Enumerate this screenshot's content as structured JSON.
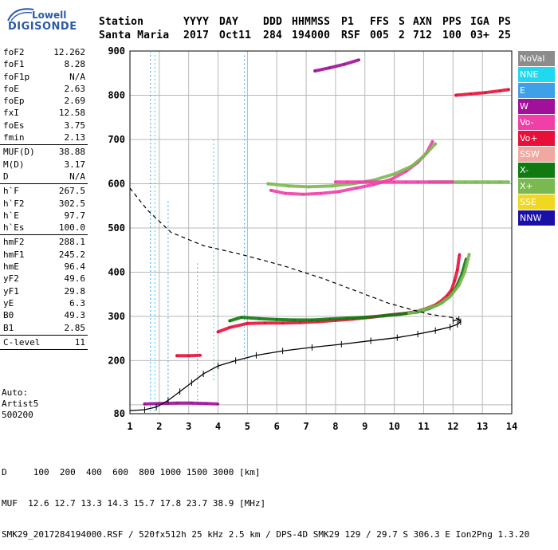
{
  "logo": {
    "word1": "Lowell",
    "word2": "DIGISONDE"
  },
  "header": {
    "labels": [
      "Station",
      "YYYY",
      "DAY",
      "DDD",
      "HHMMSS",
      "P1",
      "FFS",
      "S",
      "AXN",
      "PPS",
      "IGA",
      "PS"
    ],
    "values": [
      "Santa Maria",
      "2017",
      "Oct11",
      "284",
      "194000",
      "RSF",
      "005",
      "2",
      "712",
      "100",
      "03+",
      "25"
    ]
  },
  "params": [
    {
      "label": "foF2",
      "value": "12.262"
    },
    {
      "label": "foF1",
      "value": "8.28"
    },
    {
      "label": "foF1p",
      "value": "N/A"
    },
    {
      "label": "foE",
      "value": "2.63"
    },
    {
      "label": "foEp",
      "value": "2.69"
    },
    {
      "label": "fxI",
      "value": "12.58"
    },
    {
      "label": "foEs",
      "value": "3.75"
    },
    {
      "label": "fmin",
      "value": "2.13"
    },
    {
      "sep": true
    },
    {
      "label": "MUF(D)",
      "value": "38.88"
    },
    {
      "label": "M(D)",
      "value": "3.17"
    },
    {
      "label": "D",
      "value": "N/A"
    },
    {
      "sep": true
    },
    {
      "label": "h`F",
      "value": "267.5"
    },
    {
      "label": "h`F2",
      "value": "302.5"
    },
    {
      "label": "h`E",
      "value": "97.7"
    },
    {
      "label": "h`Es",
      "value": "100.0"
    },
    {
      "sep": true
    },
    {
      "label": "hmF2",
      "value": "288.1"
    },
    {
      "label": "hmF1",
      "value": "245.2"
    },
    {
      "label": "hmE",
      "value": "96.4"
    },
    {
      "label": "yF2",
      "value": "49.6"
    },
    {
      "label": "yF1",
      "value": "29.8"
    },
    {
      "label": "yE",
      "value": "6.3"
    },
    {
      "label": "B0",
      "value": "49.3"
    },
    {
      "label": "B1",
      "value": "2.85"
    },
    {
      "sep": true
    },
    {
      "label": "C-level",
      "value": "11"
    },
    {
      "sep": true
    }
  ],
  "auto": [
    "Auto:",
    "Artist5",
    "500200"
  ],
  "legend": [
    {
      "label": "NoVal",
      "color": "#8c8c8c"
    },
    {
      "label": "NNE",
      "color": "#20d8f0"
    },
    {
      "label": "E",
      "color": "#3ea0e8"
    },
    {
      "label": "W",
      "color": "#a0109a"
    },
    {
      "label": "Vo-",
      "color": "#f040a8"
    },
    {
      "label": "Vo+",
      "color": "#e8103a"
    },
    {
      "label": "SSW",
      "color": "#f0a8a0"
    },
    {
      "label": "X-",
      "color": "#107a10"
    },
    {
      "label": "X+",
      "color": "#7ab850"
    },
    {
      "label": "SSE",
      "color": "#f0d820"
    },
    {
      "label": "NNW",
      "color": "#1a10a8"
    }
  ],
  "footer": {
    "line1": "D     100  200  400  600  800 1000 1500 3000 [km]",
    "line2": "MUF  12.6 12.7 13.3 14.3 15.7 17.8 23.7 38.9 [MHz]",
    "line3": "SMK29_2017284194000.RSF / 520fx512h 25 kHz 2.5 km / DPS-4D SMK29 129 / 29.7 S 306.3 E Ion2Png 1.3.20"
  },
  "chart_data": {
    "type": "scatter",
    "xlim": [
      1,
      14
    ],
    "ylim": [
      80,
      900
    ],
    "x_ticks": [
      1,
      2,
      3,
      4,
      5,
      6,
      7,
      8,
      9,
      10,
      11,
      12,
      13,
      14
    ],
    "y_ticks": [
      100,
      200,
      300,
      400,
      500,
      600,
      700,
      800,
      900
    ],
    "y_tick_labels": [
      "",
      "200",
      "300",
      "400",
      "500",
      "600",
      "700",
      "800",
      "900"
    ],
    "y_extra_label": "80",
    "grid": true,
    "profile_dashed": {
      "x": [
        1.0,
        1.6,
        2.4,
        3.5,
        4.8,
        6.2,
        7.6,
        8.8,
        9.8,
        10.6,
        11.2,
        11.7,
        12.1,
        12.26
      ],
      "y": [
        590,
        540,
        490,
        460,
        440,
        415,
        385,
        355,
        330,
        315,
        305,
        300,
        296,
        292
      ]
    },
    "profile_solid": {
      "x": [
        1.0,
        1.5,
        1.9,
        2.3,
        2.7,
        3.1,
        3.5,
        4.0,
        4.6,
        5.3,
        6.2,
        7.2,
        8.2,
        9.2,
        10.1,
        10.8,
        11.4,
        11.9,
        12.15,
        12.26,
        12.2,
        12.0
      ],
      "y": [
        87,
        89,
        95,
        110,
        130,
        150,
        170,
        188,
        200,
        212,
        222,
        230,
        237,
        245,
        252,
        260,
        268,
        276,
        282,
        288,
        293,
        290
      ]
    },
    "series": [
      {
        "name": "Vo+",
        "x": [
          4.0,
          4.4,
          5.0,
          5.6,
          6.2,
          6.8,
          7.4,
          8.0,
          8.6,
          9.2,
          9.8,
          10.4,
          10.8,
          11.1,
          11.4,
          11.6,
          11.8,
          11.95,
          12.05,
          12.15,
          12.22
        ],
        "y": [
          265,
          275,
          284,
          285,
          285,
          286,
          288,
          291,
          294,
          298,
          303,
          307,
          312,
          318,
          326,
          335,
          347,
          360,
          380,
          405,
          440
        ]
      },
      {
        "name": "X-",
        "x": [
          4.4,
          4.8,
          5.4,
          6.0,
          6.6,
          7.2,
          7.8,
          8.4,
          9.0,
          9.6,
          10.2,
          10.8,
          11.2,
          11.6,
          11.9,
          12.1,
          12.3,
          12.45
        ],
        "y": [
          290,
          298,
          295,
          293,
          292,
          292,
          294,
          296,
          298,
          301,
          305,
          310,
          318,
          330,
          345,
          365,
          395,
          430
        ]
      },
      {
        "name": "X+",
        "x": [
          10.5,
          11.0,
          11.5,
          11.9,
          12.2,
          12.4,
          12.55
        ],
        "y": [
          307,
          315,
          326,
          345,
          370,
          400,
          440
        ]
      },
      {
        "name": "Vo-",
        "x": [
          5.8,
          6.3,
          6.9,
          7.5,
          8.1,
          8.7,
          9.3,
          9.9,
          10.4,
          10.8,
          11.1,
          11.3
        ],
        "y": [
          585,
          578,
          576,
          578,
          582,
          590,
          598,
          610,
          628,
          648,
          670,
          695
        ]
      },
      {
        "name": "W",
        "x": [
          1.5,
          2.0,
          2.6,
          3.1,
          3.6,
          4.0
        ],
        "y": [
          102,
          103,
          104,
          104,
          103,
          102
        ]
      },
      {
        "name": "X+",
        "x": [
          5.7,
          6.4,
          7.1,
          7.9,
          8.6,
          9.3,
          10.0,
          10.6,
          11.0,
          11.4
        ],
        "y": [
          600,
          595,
          593,
          595,
          600,
          608,
          622,
          640,
          662,
          690
        ]
      },
      {
        "name": "W",
        "x": [
          7.3,
          7.8,
          8.3,
          8.8
        ],
        "y": [
          855,
          862,
          870,
          880
        ]
      },
      {
        "name": "Vo+",
        "x": [
          12.1,
          12.6,
          13.1,
          13.6,
          13.9
        ],
        "y": [
          800,
          803,
          806,
          810,
          813
        ]
      },
      {
        "name": "X+",
        "x": [
          11.2,
          11.6,
          12.0,
          12.4,
          12.8,
          13.2,
          13.6,
          13.9
        ],
        "y": [
          604,
          604,
          604,
          604,
          604,
          604,
          604,
          604
        ]
      },
      {
        "name": "Vo+",
        "x": [
          2.6,
          3.0,
          3.4
        ],
        "y": [
          211,
          211,
          212
        ]
      },
      {
        "name": "Vo-",
        "x": [
          8.0,
          8.4,
          8.8,
          9.2,
          9.6,
          10.0,
          10.4,
          10.8,
          11.2,
          11.6,
          12.0
        ],
        "y": [
          604,
          604,
          604,
          604,
          604,
          604,
          604,
          604,
          604,
          604,
          604
        ]
      }
    ],
    "vertical_traces": [
      {
        "x": 1.7,
        "y": [
          80,
          900
        ],
        "color": "#3ea0e8"
      },
      {
        "x": 1.85,
        "y": [
          80,
          900
        ],
        "color": "#20d8f0"
      },
      {
        "x": 2.3,
        "y": [
          100,
          560
        ],
        "color": "#3ea0e8"
      },
      {
        "x": 3.3,
        "y": [
          100,
          420
        ],
        "color": "#3ea0e8"
      },
      {
        "x": 3.85,
        "y": [
          150,
          700
        ],
        "color": "#20d8f0"
      },
      {
        "x": 4.9,
        "y": [
          200,
          890
        ],
        "color": "#3ea0e8"
      }
    ]
  }
}
